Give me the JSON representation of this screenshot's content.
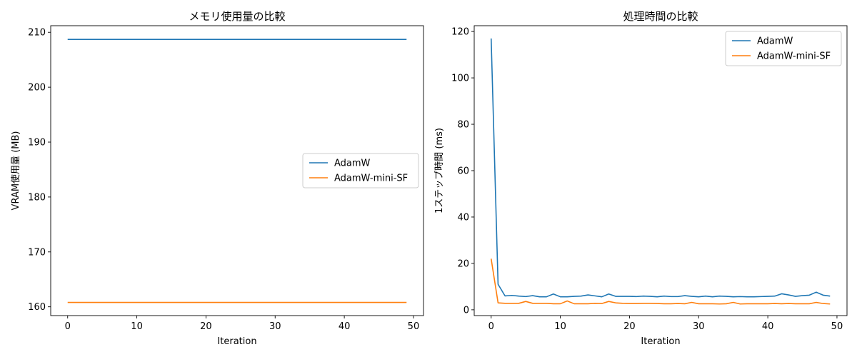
{
  "colors": {
    "adamw": "#1f77b4",
    "mini": "#ff7f0e"
  },
  "chart_data": [
    {
      "type": "line",
      "title": "メモリ使用量の比較",
      "xlabel": "Iteration",
      "ylabel": "VRAM使用量 (MB)",
      "xlim": [
        -2.45,
        51.45
      ],
      "ylim": [
        158.4,
        211.2
      ],
      "xticks": [
        0,
        10,
        20,
        30,
        40,
        50
      ],
      "yticks": [
        160,
        170,
        180,
        190,
        200,
        210
      ],
      "legend_position": "center-right",
      "grid": false,
      "series": [
        {
          "name": "AdamW",
          "x": [
            0,
            49
          ],
          "y": [
            208.7,
            208.7
          ]
        },
        {
          "name": "AdamW-mini-SF",
          "x": [
            0,
            49
          ],
          "y": [
            160.8,
            160.8
          ]
        }
      ]
    },
    {
      "type": "line",
      "title": "処理時間の比較",
      "xlabel": "Iteration",
      "ylabel": "1ステップ時間 (ms)",
      "xlim": [
        -2.45,
        51.45
      ],
      "ylim": [
        -2.5,
        122.5
      ],
      "xticks": [
        0,
        10,
        20,
        30,
        40,
        50
      ],
      "yticks": [
        0,
        20,
        40,
        60,
        80,
        100,
        120
      ],
      "legend_position": "top-right",
      "grid": false,
      "series": [
        {
          "name": "AdamW",
          "x": [
            0,
            1,
            2,
            3,
            4,
            5,
            6,
            7,
            8,
            9,
            10,
            11,
            12,
            13,
            14,
            15,
            16,
            17,
            18,
            19,
            20,
            21,
            22,
            23,
            24,
            25,
            26,
            27,
            28,
            29,
            30,
            31,
            32,
            33,
            34,
            35,
            36,
            37,
            38,
            39,
            40,
            41,
            42,
            43,
            44,
            45,
            46,
            47,
            48,
            49
          ],
          "y": [
            117,
            11,
            6,
            6.2,
            5.9,
            5.7,
            6.1,
            5.6,
            5.6,
            6.8,
            5.6,
            5.6,
            5.8,
            5.9,
            6.4,
            6.0,
            5.6,
            6.8,
            5.8,
            5.8,
            5.8,
            5.7,
            5.9,
            5.8,
            5.6,
            5.9,
            5.7,
            5.7,
            6.1,
            5.8,
            5.6,
            5.9,
            5.6,
            5.9,
            5.8,
            5.6,
            5.7,
            5.6,
            5.6,
            5.7,
            5.8,
            5.9,
            6.9,
            6.4,
            5.8,
            6.1,
            6.3,
            7.6,
            6.3,
            5.9
          ]
        },
        {
          "name": "AdamW-mini-SF",
          "x": [
            0,
            1,
            2,
            3,
            4,
            5,
            6,
            7,
            8,
            9,
            10,
            11,
            12,
            13,
            14,
            15,
            16,
            17,
            18,
            19,
            20,
            21,
            22,
            23,
            24,
            25,
            26,
            27,
            28,
            29,
            30,
            31,
            32,
            33,
            34,
            35,
            36,
            37,
            38,
            39,
            40,
            41,
            42,
            43,
            44,
            45,
            46,
            47,
            48,
            49
          ],
          "y": [
            22,
            3,
            2.8,
            2.8,
            2.8,
            3.6,
            2.8,
            2.8,
            2.8,
            2.6,
            2.6,
            3.8,
            2.6,
            2.6,
            2.6,
            2.8,
            2.7,
            3.6,
            3.0,
            2.8,
            2.7,
            2.7,
            2.8,
            2.8,
            2.7,
            2.6,
            2.6,
            2.7,
            2.6,
            3.2,
            2.6,
            2.6,
            2.6,
            2.5,
            2.6,
            3.2,
            2.5,
            2.6,
            2.6,
            2.6,
            2.6,
            2.7,
            2.6,
            2.7,
            2.6,
            2.6,
            2.6,
            3.2,
            2.7,
            2.5
          ]
        }
      ]
    }
  ]
}
